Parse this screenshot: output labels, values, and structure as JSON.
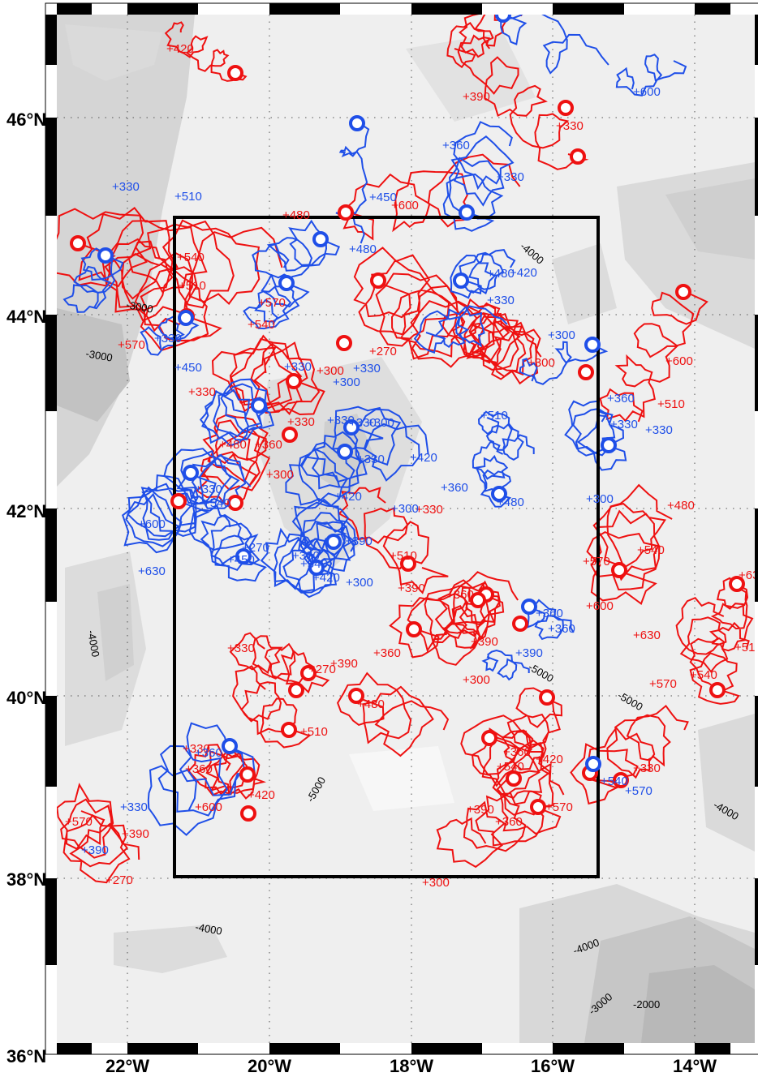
{
  "map": {
    "colors": {
      "cyclonic": "#1f4fe8",
      "anticyclonic": "#ee1111",
      "ocean_light": "#f5f5f5",
      "ocean_mid": "#e4e4e4",
      "ocean_deep": "#cccccc",
      "box": "#000000"
    },
    "lat_labels": [
      "46°N",
      "44°N",
      "42°N",
      "40°N",
      "38°N",
      "36°N"
    ],
    "lon_labels": [
      "22°W",
      "20°W",
      "18°W",
      "16°W",
      "14°W"
    ],
    "depth_labels": [
      "-3000",
      "-3000",
      "-4000",
      "-4000",
      "-5000",
      "-5000",
      "-5000",
      "-4000",
      "-4000",
      "-4000",
      "-3000",
      "-2000"
    ],
    "red_labels": [
      "420",
      "390",
      "330",
      "480",
      "600",
      "540",
      "510",
      "570",
      "540",
      "570",
      "300",
      "270",
      "300",
      "330",
      "480",
      "360",
      "330",
      "300",
      "600",
      "510",
      "480",
      "540",
      "570",
      "510",
      "330",
      "390",
      "360",
      "390",
      "360",
      "300",
      "330",
      "270",
      "390",
      "480",
      "510",
      "330",
      "360",
      "600",
      "420",
      "540",
      "360",
      "570",
      "600",
      "630",
      "570",
      "540",
      "510",
      "630",
      "570",
      "390",
      "270",
      "300",
      "330",
      "360",
      "420",
      "390"
    ],
    "blue_labels": [
      "600",
      "360",
      "330",
      "450",
      "330",
      "510",
      "480",
      "480",
      "330",
      "420",
      "330",
      "300",
      "330",
      "330",
      "300",
      "330",
      "450",
      "330",
      "330",
      "420",
      "360",
      "510",
      "360",
      "480",
      "420",
      "300",
      "540",
      "330",
      "270",
      "330",
      "390",
      "540",
      "420",
      "300",
      "360",
      "600",
      "630",
      "450",
      "390",
      "360",
      "330",
      "390",
      "360",
      "540",
      "570",
      "300",
      "330",
      "330",
      "300"
    ]
  }
}
